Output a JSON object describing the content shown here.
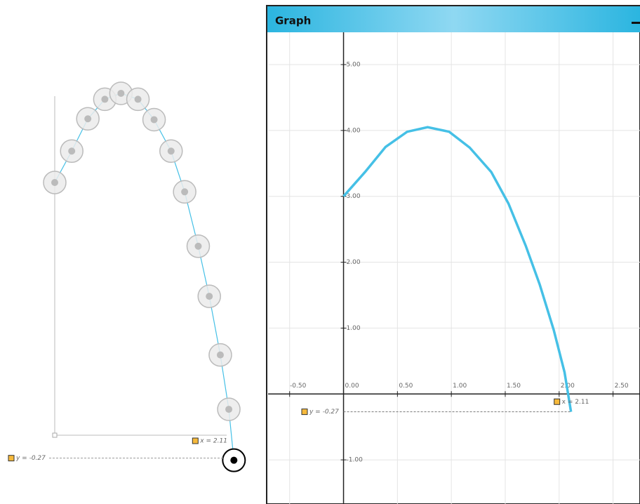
{
  "graph": {
    "title": "Graph",
    "xlim": [
      -0.7,
      2.75
    ],
    "ylim": [
      -1.67,
      5.49
    ],
    "xticks": [
      {
        "value": -0.5,
        "label": "-0.50"
      },
      {
        "value": 0,
        "label": "0.00"
      },
      {
        "value": 0.5,
        "label": "0.50"
      },
      {
        "value": 1,
        "label": "1.00"
      },
      {
        "value": 1.5,
        "label": "1.50"
      },
      {
        "value": 2,
        "label": "2.00"
      },
      {
        "value": 2.5,
        "label": "2.50"
      }
    ],
    "yticks": [
      {
        "value": -1,
        "label": "-1.00"
      },
      {
        "value": 1,
        "label": "1.00"
      },
      {
        "value": 2,
        "label": "2.00"
      },
      {
        "value": 3,
        "label": "3.00"
      },
      {
        "value": 4,
        "label": "4.00"
      },
      {
        "value": 5,
        "label": "5.00"
      }
    ],
    "grid": true,
    "curve": {
      "color": "#45c0e6",
      "x": [
        0,
        0.2,
        0.39,
        0.59,
        0.78,
        0.98,
        1.17,
        1.37,
        1.53,
        1.69,
        1.82,
        1.95,
        2.05,
        2.11
      ],
      "y": [
        3,
        3.37,
        3.75,
        3.98,
        4.05,
        3.98,
        3.74,
        3.37,
        2.89,
        2.25,
        1.66,
        0.97,
        0.33,
        -0.27
      ]
    },
    "marker_x": {
      "value": 2.11,
      "label": "x = 2.11"
    },
    "marker_y": {
      "value": -0.27,
      "label": "y = -0.27"
    }
  }
}
